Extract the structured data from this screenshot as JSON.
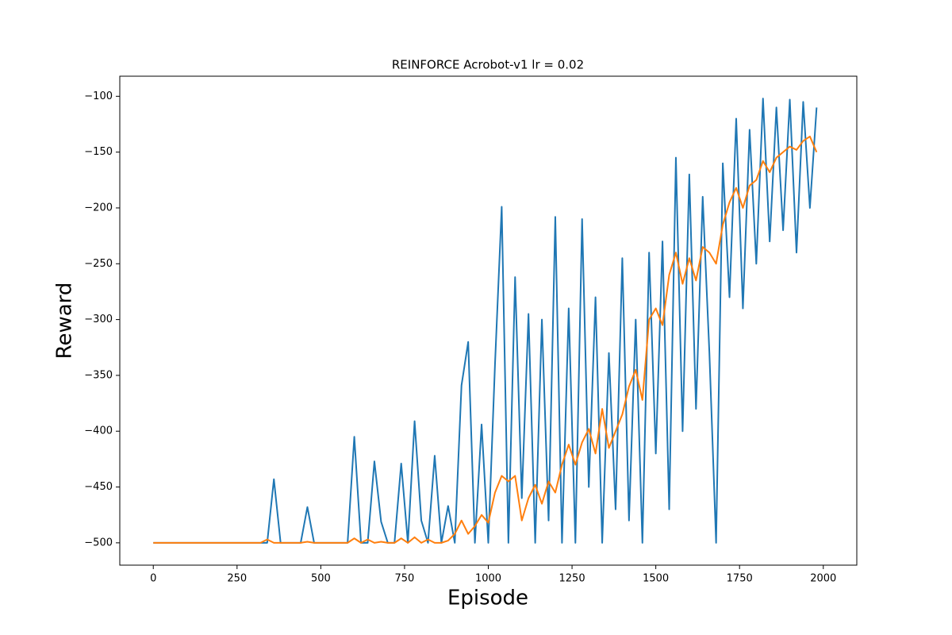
{
  "chart_data": {
    "type": "line",
    "title": "REINFORCE Acrobot-v1 lr = 0.02",
    "x_label": "Episode",
    "y_label": "Reward",
    "x": [
      0,
      20,
      40,
      60,
      80,
      100,
      120,
      140,
      160,
      180,
      200,
      220,
      240,
      260,
      280,
      300,
      320,
      340,
      360,
      380,
      400,
      420,
      440,
      460,
      480,
      500,
      520,
      540,
      560,
      580,
      600,
      620,
      640,
      660,
      680,
      700,
      720,
      740,
      760,
      780,
      800,
      820,
      840,
      860,
      880,
      900,
      920,
      940,
      960,
      980,
      1000,
      1020,
      1040,
      1060,
      1080,
      1100,
      1120,
      1140,
      1160,
      1180,
      1200,
      1220,
      1240,
      1260,
      1280,
      1300,
      1320,
      1340,
      1360,
      1380,
      1400,
      1420,
      1440,
      1460,
      1480,
      1500,
      1520,
      1540,
      1560,
      1580,
      1600,
      1620,
      1640,
      1660,
      1680,
      1700,
      1720,
      1740,
      1760,
      1780,
      1800,
      1820,
      1840,
      1860,
      1880,
      1900,
      1920,
      1940,
      1960,
      1980
    ],
    "series": [
      {
        "color": "#1f77b4",
        "values": [
          -500,
          -500,
          -500,
          -500,
          -500,
          -500,
          -500,
          -500,
          -500,
          -500,
          -500,
          -500,
          -500,
          -500,
          -500,
          -500,
          -500,
          -500,
          -443,
          -500,
          -500,
          -500,
          -500,
          -468,
          -500,
          -500,
          -500,
          -500,
          -500,
          -500,
          -405,
          -500,
          -500,
          -427,
          -481,
          -500,
          -500,
          -429,
          -500,
          -391,
          -480,
          -500,
          -422,
          -500,
          -467,
          -500,
          -359,
          -320,
          -500,
          -394,
          -500,
          -340,
          -199,
          -500,
          -262,
          -460,
          -295,
          -500,
          -300,
          -480,
          -208,
          -500,
          -290,
          -500,
          -210,
          -450,
          -280,
          -500,
          -330,
          -470,
          -245,
          -480,
          -300,
          -500,
          -240,
          -420,
          -230,
          -470,
          -155,
          -400,
          -170,
          -380,
          -190,
          -330,
          -500,
          -160,
          -280,
          -120,
          -290,
          -130,
          -250,
          -102,
          -230,
          -110,
          -220,
          -103,
          -240,
          -105,
          -200,
          -110
        ]
      },
      {
        "color": "#ff7f0e",
        "values": [
          -500,
          -500,
          -500,
          -500,
          -500,
          -500,
          -500,
          -500,
          -500,
          -500,
          -500,
          -500,
          -500,
          -500,
          -500,
          -500,
          -500,
          -497,
          -500,
          -500,
          -500,
          -500,
          -500,
          -499,
          -500,
          -500,
          -500,
          -500,
          -500,
          -500,
          -496,
          -500,
          -497,
          -500,
          -499,
          -500,
          -500,
          -496,
          -500,
          -495,
          -500,
          -497,
          -500,
          -500,
          -498,
          -492,
          -480,
          -492,
          -485,
          -475,
          -482,
          -455,
          -440,
          -445,
          -440,
          -480,
          -460,
          -448,
          -465,
          -445,
          -455,
          -430,
          -412,
          -430,
          -410,
          -398,
          -420,
          -380,
          -415,
          -400,
          -385,
          -360,
          -345,
          -372,
          -300,
          -290,
          -305,
          -260,
          -240,
          -268,
          -245,
          -265,
          -235,
          -240,
          -250,
          -215,
          -195,
          -182,
          -200,
          -180,
          -175,
          -158,
          -168,
          -155,
          -150,
          -145,
          -148,
          -140,
          -136,
          -150
        ]
      }
    ],
    "xlim": [
      -100,
      2100
    ],
    "ylim": [
      -520,
      -82
    ],
    "xticks": [
      0,
      250,
      500,
      750,
      1000,
      1250,
      1500,
      1750,
      2000
    ],
    "yticks": [
      {
        "value": -500,
        "label": "−500"
      },
      {
        "value": -450,
        "label": "−450"
      },
      {
        "value": -400,
        "label": "−400"
      },
      {
        "value": -350,
        "label": "−350"
      },
      {
        "value": -300,
        "label": "−300"
      },
      {
        "value": -250,
        "label": "−250"
      },
      {
        "value": -200,
        "label": "−200"
      },
      {
        "value": -150,
        "label": "−150"
      },
      {
        "value": -100,
        "label": "−100"
      }
    ]
  }
}
